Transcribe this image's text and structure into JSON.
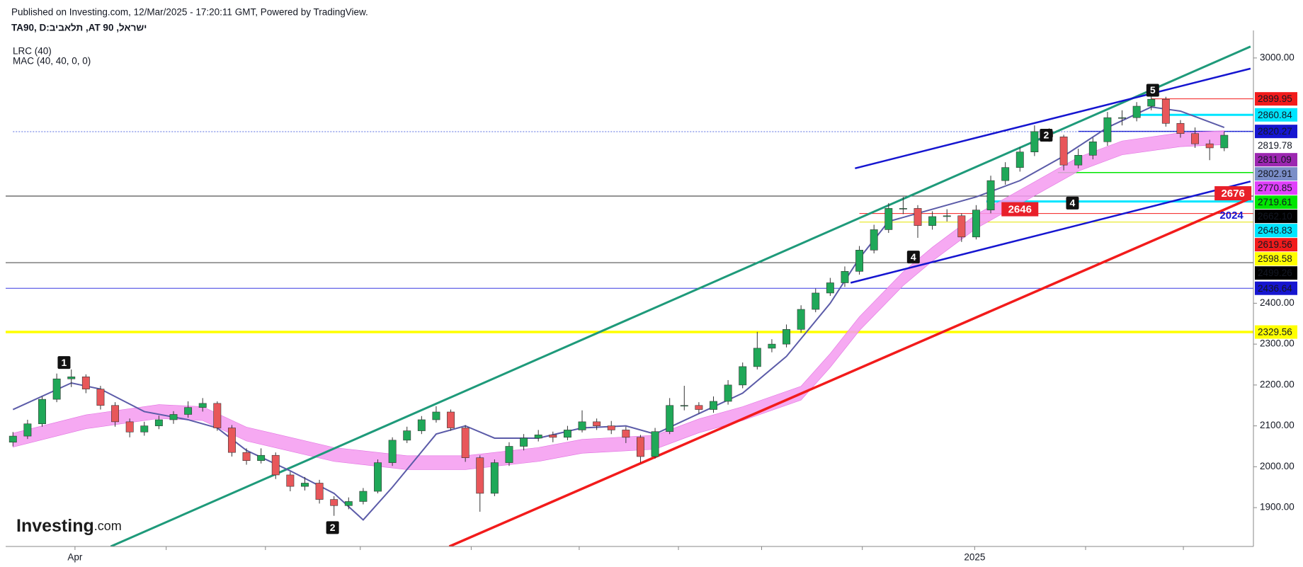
{
  "chart_data": {
    "type": "candlestick",
    "published": "Published on Investing.com, 12/Mar/2025 - 17:20:11 GMT, Powered by TradingView.",
    "symbol": "TA90, D:ביבאלת ,AT 90 ,לארשי",
    "indicator_1": "LRC (40)",
    "indicator_2": "MAC (40, 40, 0, 0)",
    "logo_main": "Investing",
    "logo_suffix": ".com",
    "up_color": "#1fa858",
    "down_color": "#e8575a",
    "open": [
      2060,
      2075,
      2105,
      2165,
      2215,
      2220,
      2190,
      2150,
      2110,
      2085,
      2100,
      2115,
      2128,
      2145,
      2155,
      2095,
      2035,
      2015,
      2028,
      1980,
      1952,
      1960,
      1920,
      1905,
      1915,
      1940,
      2010,
      2065,
      2088,
      2115,
      2134,
      2095,
      2022,
      1935,
      2010,
      2050,
      2070,
      2078,
      2072,
      2090,
      2110,
      2100,
      2090,
      2072,
      2025,
      2086,
      2150,
      2150,
      2140,
      2160,
      2200,
      2245,
      2290,
      2300,
      2336,
      2385,
      2425,
      2450,
      2478,
      2530,
      2580,
      2632,
      2632,
      2590,
      2612,
      2614,
      2562,
      2628,
      2700,
      2732,
      2770,
      2820,
      2807,
      2738,
      2762,
      2795,
      2854,
      2854,
      2882,
      2899,
      2840,
      2815,
      2790,
      2780
    ],
    "high": [
      2085,
      2115,
      2172,
      2228,
      2238,
      2226,
      2198,
      2158,
      2118,
      2110,
      2125,
      2136,
      2160,
      2168,
      2160,
      2102,
      2045,
      2045,
      2035,
      1988,
      1975,
      1968,
      1928,
      1925,
      1948,
      2018,
      2072,
      2098,
      2124,
      2148,
      2140,
      2102,
      2028,
      2018,
      2060,
      2080,
      2090,
      2086,
      2100,
      2138,
      2118,
      2112,
      2098,
      2078,
      2095,
      2168,
      2198,
      2158,
      2172,
      2212,
      2255,
      2330,
      2312,
      2348,
      2395,
      2436,
      2462,
      2490,
      2540,
      2592,
      2645,
      2660,
      2640,
      2625,
      2630,
      2620,
      2640,
      2712,
      2745,
      2782,
      2835,
      2828,
      2812,
      2778,
      2805,
      2868,
      2872,
      2892,
      2912,
      2905,
      2848,
      2830,
      2800,
      2820
    ],
    "low": [
      2050,
      2068,
      2098,
      2158,
      2195,
      2180,
      2140,
      2098,
      2072,
      2076,
      2092,
      2105,
      2120,
      2135,
      2088,
      2025,
      2005,
      2008,
      1970,
      1940,
      1942,
      1910,
      1880,
      1896,
      1908,
      1935,
      2002,
      2058,
      2080,
      2108,
      2088,
      2012,
      1890,
      1928,
      2002,
      2040,
      2062,
      2060,
      2065,
      2084,
      2090,
      2080,
      2058,
      2010,
      2020,
      2080,
      2138,
      2130,
      2132,
      2152,
      2192,
      2238,
      2280,
      2292,
      2328,
      2378,
      2418,
      2440,
      2470,
      2522,
      2572,
      2618,
      2560,
      2580,
      2600,
      2550,
      2556,
      2620,
      2690,
      2722,
      2760,
      2795,
      2725,
      2730,
      2752,
      2785,
      2835,
      2845,
      2872,
      2832,
      2805,
      2780,
      2750,
      2772
    ],
    "close": [
      2075,
      2105,
      2165,
      2215,
      2220,
      2190,
      2150,
      2110,
      2085,
      2100,
      2115,
      2128,
      2145,
      2155,
      2095,
      2035,
      2015,
      2028,
      1980,
      1952,
      1960,
      1920,
      1905,
      1915,
      1940,
      2010,
      2065,
      2088,
      2115,
      2134,
      2095,
      2022,
      1935,
      2010,
      2050,
      2070,
      2078,
      2072,
      2090,
      2110,
      2100,
      2090,
      2072,
      2025,
      2086,
      2150,
      2150,
      2140,
      2160,
      2200,
      2245,
      2290,
      2300,
      2336,
      2385,
      2425,
      2450,
      2478,
      2530,
      2580,
      2632,
      2632,
      2590,
      2612,
      2614,
      2562,
      2628,
      2700,
      2732,
      2770,
      2820,
      2807,
      2738,
      2762,
      2795,
      2854,
      2854,
      2882,
      2899,
      2840,
      2815,
      2790,
      2780,
      2811
    ],
    "ma": {
      "color": "#5b5ba8",
      "x": [
        0,
        4,
        6,
        9,
        12,
        14,
        16,
        19,
        22,
        24,
        26,
        29,
        31,
        33,
        36,
        39,
        42,
        44,
        47,
        50,
        53,
        56,
        58,
        60,
        63,
        66,
        69,
        72,
        75,
        78,
        80,
        83
      ],
      "values": [
        2140,
        2205,
        2190,
        2135,
        2115,
        2095,
        2040,
        1990,
        1935,
        1870,
        1950,
        2080,
        2100,
        2070,
        2070,
        2095,
        2100,
        2080,
        2130,
        2180,
        2270,
        2400,
        2510,
        2600,
        2630,
        2660,
        2700,
        2760,
        2830,
        2880,
        2870,
        2830
      ]
    },
    "band": {
      "color": "#f49af0",
      "x": [
        0,
        5,
        10,
        13,
        16,
        22,
        27,
        31,
        36,
        39,
        44,
        47,
        50,
        54,
        56,
        58,
        61,
        63,
        66,
        70,
        73,
        76,
        80,
        83
      ],
      "upper": [
        2082,
        2127,
        2152,
        2147,
        2097,
        2047,
        2027,
        2027,
        2047,
        2067,
        2077,
        2117,
        2147,
        2197,
        2277,
        2367,
        2477,
        2537,
        2617,
        2697,
        2757,
        2797,
        2817,
        2822
      ],
      "lower": [
        2048,
        2093,
        2118,
        2113,
        2063,
        2013,
        1993,
        1993,
        2013,
        2033,
        2043,
        2083,
        2113,
        2163,
        2243,
        2333,
        2443,
        2503,
        2583,
        2663,
        2723,
        2763,
        2783,
        2788
      ]
    },
    "trend_lines": [
      {
        "color": "#1e9a7a",
        "width": 3,
        "x": [
          6.7,
          84.8
        ],
        "y": [
          1805,
          3028
        ]
      },
      {
        "color": "#f21b1b",
        "width": 3.5,
        "x": [
          29.9,
          84.8
        ],
        "y": [
          1805,
          2657
        ]
      },
      {
        "color": "#1515d0",
        "width": 2.5,
        "x": [
          57.7,
          84.8
        ],
        "y": [
          2730,
          2974
        ]
      },
      {
        "color": "#1515d0",
        "width": 2.5,
        "x": [
          57.4,
          84.8
        ],
        "y": [
          2450,
          2698
        ]
      }
    ],
    "price_labels": [
      {
        "value": 2899.95,
        "label": "2899.95",
        "color": "#f21b1b",
        "text_color": "#ffffff",
        "line": {
          "from": 78,
          "color": "#f21b1b",
          "width": 1
        }
      },
      {
        "value": 2860.84,
        "label": "2860.84",
        "color": "#00e5ff",
        "text_color": "#000000",
        "line": {
          "from": 77,
          "color": "#00e5ff",
          "width": 3
        }
      },
      {
        "value": 2820.27,
        "label": "2820.27",
        "color": "#1515d0",
        "text_color": "#ffffff",
        "line": {
          "from": 73,
          "color": "#1515d0",
          "width": 1.5
        }
      },
      {
        "value": 2819.78,
        "label": "2819.78",
        "color": "#ffffff",
        "text_color": "#000000",
        "line": {
          "from": 0,
          "color": "#5a6ee0",
          "width": 1,
          "dash": "2,2"
        }
      },
      {
        "value": 2811.09,
        "label": "2811.09",
        "color": "#9c27b0",
        "text_color": "#ffffff"
      },
      {
        "value": 2802.91,
        "label": "2802.91",
        "color": "#7b8ec8",
        "text_color": "#ffffff"
      },
      {
        "value": 2770.85,
        "label": "2770.85",
        "color": "#e040fb",
        "text_color": "#ffffff"
      },
      {
        "value": 2719.61,
        "label": "2719.61",
        "color": "#00e600",
        "text_color": "#000000",
        "line": {
          "from": 71.6,
          "color": "#00e600",
          "width": 1.5
        }
      },
      {
        "value": 2662.1,
        "label": "2662.10",
        "color": "#000000",
        "text_color": "#ffffff",
        "line": {
          "from": -0.5,
          "color": "#555555",
          "width": 1.2
        }
      },
      {
        "value": 2648.83,
        "label": "2648.83",
        "color": "#00e5ff",
        "text_color": "#000000",
        "line": {
          "from": 66.7,
          "color": "#00e5ff",
          "width": 3
        }
      },
      {
        "value": 2619.56,
        "label": "2619.56",
        "color": "#f21b1b",
        "text_color": "#ffffff",
        "line": {
          "from": 58,
          "color": "#f21b1b",
          "width": 1
        }
      },
      {
        "value": 2598.58,
        "label": "2598.58",
        "color": "#ffff00",
        "text_color": "#000000",
        "line": {
          "from": 58,
          "color": "#e6e600",
          "width": 1
        }
      },
      {
        "value": 2499.26,
        "label": "2499.26",
        "color": "#000000",
        "text_color": "#ffffff",
        "line": {
          "from": -0.5,
          "color": "#555555",
          "width": 1.2
        }
      },
      {
        "value": 2436.64,
        "label": "2436.64",
        "color": "#1515d0",
        "text_color": "#ffffff",
        "line": {
          "from": -0.5,
          "color": "#3a3ae0",
          "width": 1
        }
      },
      {
        "value": 2329.56,
        "label": "2329.56",
        "color": "#ffff00",
        "text_color": "#000000",
        "line": {
          "from": -0.5,
          "color": "#ffff00",
          "width": 3.5
        }
      }
    ],
    "annotations": [
      {
        "text": "1",
        "x": 3.5,
        "y": 2255,
        "style": "box"
      },
      {
        "text": "2",
        "x": 21.9,
        "y": 1851,
        "style": "box"
      },
      {
        "text": "4",
        "x": 61.7,
        "y": 2513,
        "style": "box"
      },
      {
        "text": "2",
        "x": 70.8,
        "y": 2811,
        "style": "box"
      },
      {
        "text": "4",
        "x": 72.6,
        "y": 2645,
        "style": "box"
      },
      {
        "text": "5",
        "x": 78.1,
        "y": 2921,
        "style": "box"
      },
      {
        "text": "2646",
        "x": 69,
        "y": 2630,
        "style": "red"
      },
      {
        "text": "2676",
        "x": 83.6,
        "y": 2669,
        "style": "red"
      },
      {
        "text": "2024",
        "x": 83.5,
        "y": 2614,
        "style": "blue"
      }
    ],
    "xlim": [
      -0.5,
      85
    ],
    "xticks": [
      {
        "value": 4.25,
        "label": "Apr"
      },
      {
        "value": 10.5,
        "label": null
      },
      {
        "value": 17.3,
        "label": null
      },
      {
        "value": 23.8,
        "label": null
      },
      {
        "value": 31.4,
        "label": null
      },
      {
        "value": 38.8,
        "label": null
      },
      {
        "value": 45.6,
        "label": null
      },
      {
        "value": 51.3,
        "label": null
      },
      {
        "value": 58.2,
        "label": null
      },
      {
        "value": 65.9,
        "label": "2025"
      },
      {
        "value": 73.5,
        "label": null
      },
      {
        "value": 80.2,
        "label": null
      }
    ],
    "ylim": [
      1805,
      3050
    ],
    "yticks": [
      {
        "value": 1900,
        "label": "1900.00"
      },
      {
        "value": 2000,
        "label": "2000.00"
      },
      {
        "value": 2100,
        "label": "2100.00"
      },
      {
        "value": 2200,
        "label": "2200.00"
      },
      {
        "value": 2300,
        "label": "2300.00"
      },
      {
        "value": 2400,
        "label": "2400.00"
      },
      {
        "value": 3000,
        "label": "3000.00"
      }
    ]
  }
}
